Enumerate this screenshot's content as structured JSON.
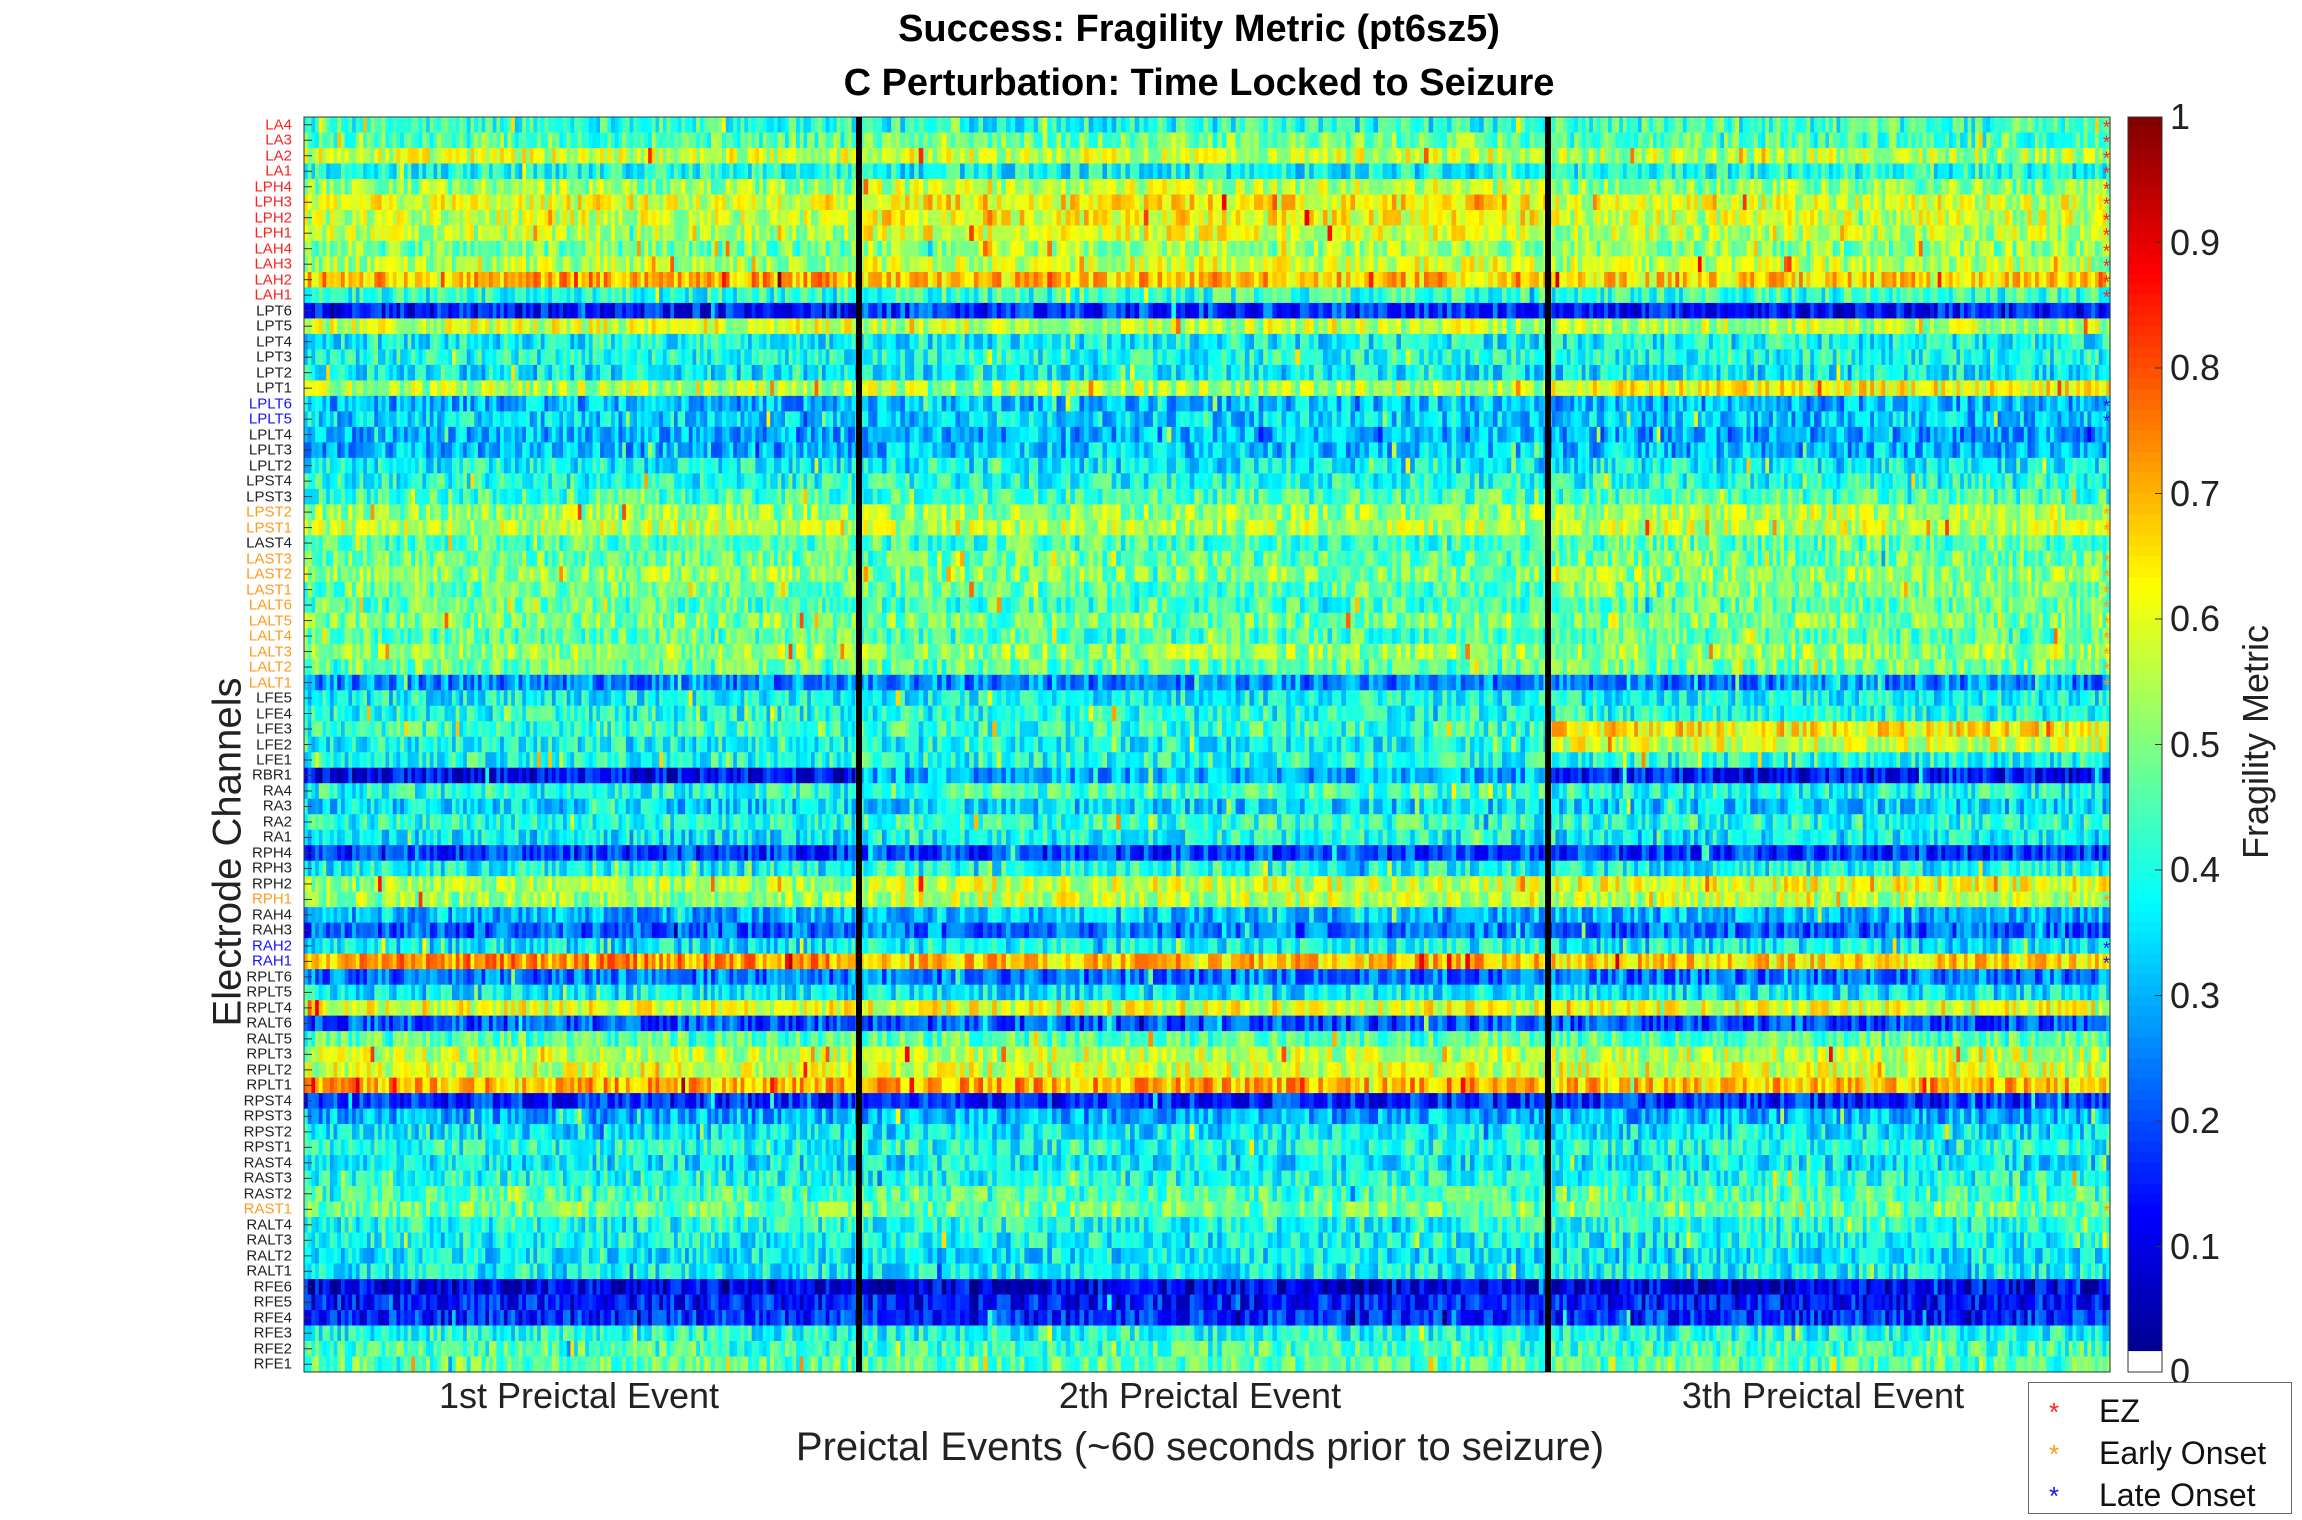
{
  "chart_data": {
    "type": "heatmap",
    "title": "Success: Fragility Metric (pt6sz5)",
    "subtitle": "C Perturbation:  Time Locked to Seizure",
    "xlabel": "Preictal Events (~60 seconds prior to seizure)",
    "ylabel": "Electrode Channels",
    "x_categories": [
      "1st Preictal Event",
      "2th Preictal Event",
      "3th Preictal Event"
    ],
    "colorbar": {
      "label": "Fragility Metric",
      "colormap": "jet",
      "range": [
        0,
        1
      ],
      "ticks": [
        "0",
        "0.1",
        "0.2",
        "0.3",
        "0.4",
        "0.5",
        "0.6",
        "0.7",
        "0.8",
        "0.9",
        "1"
      ]
    },
    "channel_categories": {
      "ez": {
        "label": "EZ",
        "color": "#ff2020"
      },
      "early": {
        "label": "Early Onset",
        "color": "#ff9a1a"
      },
      "late": {
        "label": "Late Onset",
        "color": "#1414ff"
      },
      "none": {
        "label": "",
        "color": "#222222"
      }
    },
    "channels": [
      {
        "name": "LA4",
        "cat": "ez",
        "levels": [
          0.42,
          0.4,
          0.43
        ]
      },
      {
        "name": "LA3",
        "cat": "ez",
        "levels": [
          0.46,
          0.48,
          0.45
        ]
      },
      {
        "name": "LA2",
        "cat": "ez",
        "levels": [
          0.58,
          0.57,
          0.55
        ]
      },
      {
        "name": "LA1",
        "cat": "ez",
        "levels": [
          0.4,
          0.38,
          0.4
        ]
      },
      {
        "name": "LPH4",
        "cat": "ez",
        "levels": [
          0.52,
          0.56,
          0.5
        ]
      },
      {
        "name": "LPH3",
        "cat": "ez",
        "levels": [
          0.6,
          0.63,
          0.58
        ]
      },
      {
        "name": "LPH2",
        "cat": "ez",
        "levels": [
          0.57,
          0.62,
          0.57
        ]
      },
      {
        "name": "LPH1",
        "cat": "ez",
        "levels": [
          0.55,
          0.6,
          0.55
        ]
      },
      {
        "name": "LAH4",
        "cat": "ez",
        "levels": [
          0.48,
          0.52,
          0.5
        ]
      },
      {
        "name": "LAH3",
        "cat": "ez",
        "levels": [
          0.54,
          0.58,
          0.55
        ]
      },
      {
        "name": "LAH2",
        "cat": "ez",
        "levels": [
          0.7,
          0.68,
          0.66
        ]
      },
      {
        "name": "LAH1",
        "cat": "ez",
        "levels": [
          0.4,
          0.42,
          0.42
        ]
      },
      {
        "name": "LPT6",
        "cat": "none",
        "levels": [
          0.14,
          0.18,
          0.14
        ]
      },
      {
        "name": "LPT5",
        "cat": "none",
        "levels": [
          0.58,
          0.56,
          0.55
        ]
      },
      {
        "name": "LPT4",
        "cat": "none",
        "levels": [
          0.38,
          0.38,
          0.38
        ]
      },
      {
        "name": "LPT3",
        "cat": "none",
        "levels": [
          0.4,
          0.4,
          0.4
        ]
      },
      {
        "name": "LPT2",
        "cat": "none",
        "levels": [
          0.36,
          0.36,
          0.36
        ]
      },
      {
        "name": "LPT1",
        "cat": "none",
        "levels": [
          0.55,
          0.55,
          0.62
        ]
      },
      {
        "name": "LPLT6",
        "cat": "late",
        "levels": [
          0.3,
          0.32,
          0.3
        ]
      },
      {
        "name": "LPLT5",
        "cat": "late",
        "levels": [
          0.34,
          0.34,
          0.32
        ]
      },
      {
        "name": "LPLT4",
        "cat": "none",
        "levels": [
          0.3,
          0.3,
          0.28
        ]
      },
      {
        "name": "LPLT3",
        "cat": "none",
        "levels": [
          0.3,
          0.32,
          0.3
        ]
      },
      {
        "name": "LPLT2",
        "cat": "none",
        "levels": [
          0.38,
          0.36,
          0.38
        ]
      },
      {
        "name": "LPST4",
        "cat": "none",
        "levels": [
          0.4,
          0.4,
          0.4
        ]
      },
      {
        "name": "LPST3",
        "cat": "none",
        "levels": [
          0.44,
          0.44,
          0.44
        ]
      },
      {
        "name": "LPST2",
        "cat": "early",
        "levels": [
          0.52,
          0.52,
          0.55
        ]
      },
      {
        "name": "LPST1",
        "cat": "early",
        "levels": [
          0.56,
          0.55,
          0.56
        ]
      },
      {
        "name": "LAST4",
        "cat": "none",
        "levels": [
          0.46,
          0.44,
          0.46
        ]
      },
      {
        "name": "LAST3",
        "cat": "early",
        "levels": [
          0.48,
          0.46,
          0.48
        ]
      },
      {
        "name": "LAST2",
        "cat": "early",
        "levels": [
          0.52,
          0.5,
          0.52
        ]
      },
      {
        "name": "LAST1",
        "cat": "early",
        "levels": [
          0.48,
          0.46,
          0.5
        ]
      },
      {
        "name": "LALT6",
        "cat": "early",
        "levels": [
          0.46,
          0.44,
          0.46
        ]
      },
      {
        "name": "LALT5",
        "cat": "early",
        "levels": [
          0.5,
          0.48,
          0.5
        ]
      },
      {
        "name": "LALT4",
        "cat": "early",
        "levels": [
          0.46,
          0.44,
          0.46
        ]
      },
      {
        "name": "LALT3",
        "cat": "early",
        "levels": [
          0.52,
          0.52,
          0.52
        ]
      },
      {
        "name": "LALT2",
        "cat": "early",
        "levels": [
          0.48,
          0.46,
          0.48
        ]
      },
      {
        "name": "LALT1",
        "cat": "early",
        "levels": [
          0.26,
          0.26,
          0.26
        ]
      },
      {
        "name": "LFE5",
        "cat": "none",
        "levels": [
          0.38,
          0.38,
          0.38
        ]
      },
      {
        "name": "LFE4",
        "cat": "none",
        "levels": [
          0.4,
          0.4,
          0.4
        ]
      },
      {
        "name": "LFE3",
        "cat": "none",
        "levels": [
          0.42,
          0.42,
          0.64
        ]
      },
      {
        "name": "LFE2",
        "cat": "none",
        "levels": [
          0.38,
          0.38,
          0.58
        ]
      },
      {
        "name": "LFE1",
        "cat": "none",
        "levels": [
          0.4,
          0.4,
          0.4
        ]
      },
      {
        "name": "RBR1",
        "cat": "none",
        "levels": [
          0.12,
          0.3,
          0.14
        ]
      },
      {
        "name": "RA4",
        "cat": "none",
        "levels": [
          0.4,
          0.44,
          0.4
        ]
      },
      {
        "name": "RA3",
        "cat": "none",
        "levels": [
          0.34,
          0.34,
          0.34
        ]
      },
      {
        "name": "RA2",
        "cat": "none",
        "levels": [
          0.4,
          0.42,
          0.4
        ]
      },
      {
        "name": "RA1",
        "cat": "none",
        "levels": [
          0.36,
          0.38,
          0.36
        ]
      },
      {
        "name": "RPH4",
        "cat": "none",
        "levels": [
          0.18,
          0.2,
          0.18
        ]
      },
      {
        "name": "RPH3",
        "cat": "none",
        "levels": [
          0.38,
          0.4,
          0.38
        ]
      },
      {
        "name": "RPH2",
        "cat": "none",
        "levels": [
          0.54,
          0.58,
          0.6
        ]
      },
      {
        "name": "RPH1",
        "cat": "early",
        "levels": [
          0.52,
          0.56,
          0.56
        ]
      },
      {
        "name": "RAH4",
        "cat": "none",
        "levels": [
          0.3,
          0.32,
          0.3
        ]
      },
      {
        "name": "RAH3",
        "cat": "none",
        "levels": [
          0.22,
          0.24,
          0.22
        ]
      },
      {
        "name": "RAH2",
        "cat": "late",
        "levels": [
          0.36,
          0.38,
          0.36
        ]
      },
      {
        "name": "RAH1",
        "cat": "late",
        "levels": [
          0.72,
          0.68,
          0.66
        ]
      },
      {
        "name": "RPLT6",
        "cat": "none",
        "levels": [
          0.24,
          0.24,
          0.24
        ]
      },
      {
        "name": "RPLT5",
        "cat": "none",
        "levels": [
          0.36,
          0.36,
          0.36
        ]
      },
      {
        "name": "RPLT4",
        "cat": "none",
        "levels": [
          0.6,
          0.6,
          0.6
        ]
      },
      {
        "name": "RALT6",
        "cat": "none",
        "levels": [
          0.2,
          0.2,
          0.2
        ]
      },
      {
        "name": "RALT5",
        "cat": "none",
        "levels": [
          0.46,
          0.46,
          0.46
        ]
      },
      {
        "name": "RPLT3",
        "cat": "none",
        "levels": [
          0.56,
          0.56,
          0.56
        ]
      },
      {
        "name": "RPLT2",
        "cat": "none",
        "levels": [
          0.58,
          0.58,
          0.58
        ]
      },
      {
        "name": "RPLT1",
        "cat": "none",
        "levels": [
          0.7,
          0.7,
          0.68
        ]
      },
      {
        "name": "RPST4",
        "cat": "none",
        "levels": [
          0.16,
          0.16,
          0.16
        ]
      },
      {
        "name": "RPST3",
        "cat": "none",
        "levels": [
          0.3,
          0.3,
          0.3
        ]
      },
      {
        "name": "RPST2",
        "cat": "none",
        "levels": [
          0.36,
          0.36,
          0.36
        ]
      },
      {
        "name": "RPST1",
        "cat": "none",
        "levels": [
          0.4,
          0.4,
          0.4
        ]
      },
      {
        "name": "RAST4",
        "cat": "none",
        "levels": [
          0.36,
          0.36,
          0.36
        ]
      },
      {
        "name": "RAST3",
        "cat": "none",
        "levels": [
          0.4,
          0.4,
          0.4
        ]
      },
      {
        "name": "RAST2",
        "cat": "none",
        "levels": [
          0.44,
          0.44,
          0.44
        ]
      },
      {
        "name": "RAST1",
        "cat": "early",
        "levels": [
          0.48,
          0.48,
          0.48
        ]
      },
      {
        "name": "RALT4",
        "cat": "none",
        "levels": [
          0.4,
          0.4,
          0.4
        ]
      },
      {
        "name": "RALT3",
        "cat": "none",
        "levels": [
          0.38,
          0.38,
          0.38
        ]
      },
      {
        "name": "RALT2",
        "cat": "none",
        "levels": [
          0.36,
          0.36,
          0.36
        ]
      },
      {
        "name": "RALT1",
        "cat": "none",
        "levels": [
          0.38,
          0.38,
          0.38
        ]
      },
      {
        "name": "RFE6",
        "cat": "none",
        "levels": [
          0.1,
          0.1,
          0.1
        ]
      },
      {
        "name": "RFE5",
        "cat": "none",
        "levels": [
          0.14,
          0.14,
          0.14
        ]
      },
      {
        "name": "RFE4",
        "cat": "none",
        "levels": [
          0.16,
          0.16,
          0.16
        ]
      },
      {
        "name": "RFE3",
        "cat": "none",
        "levels": [
          0.4,
          0.4,
          0.4
        ]
      },
      {
        "name": "RFE2",
        "cat": "none",
        "levels": [
          0.44,
          0.44,
          0.44
        ]
      },
      {
        "name": "RFE1",
        "cat": "none",
        "levels": [
          0.46,
          0.46,
          0.46
        ]
      }
    ]
  }
}
